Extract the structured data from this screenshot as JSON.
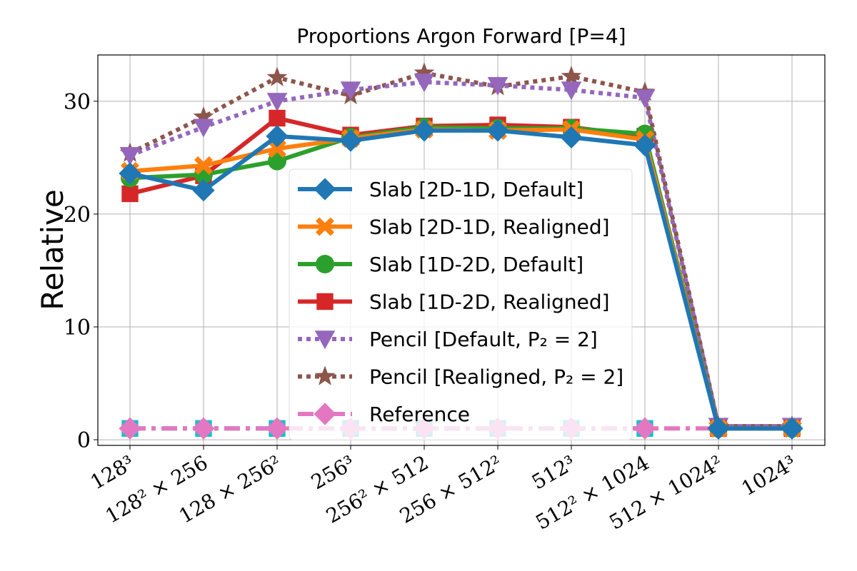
{
  "chart_data": {
    "type": "line",
    "title": "Proportions Argon Forward [P=4]",
    "y_label": "Relative",
    "categories": [
      "128³",
      "128² × 256",
      "128 × 256²",
      "256³",
      "256² × 512",
      "256 × 512²",
      "512³",
      "512² × 1024",
      "512 × 1024²",
      "1024³"
    ],
    "ylim": [
      -0.5,
      34.1
    ],
    "yticks": [
      0,
      10,
      20,
      30
    ],
    "grid": true,
    "legend": "center",
    "series": [
      {
        "name": "Slab [2D-1D, Default]",
        "color": "#1f77b4",
        "marker": "diamond",
        "linestyle": "solid",
        "values": [
          23.6,
          22.1,
          26.9,
          26.5,
          27.4,
          27.4,
          26.8,
          26.1,
          1.0,
          1.0
        ]
      },
      {
        "name": "Slab [2D-1D, Realigned]",
        "color": "#ff7f0e",
        "marker": "x",
        "linestyle": "solid",
        "values": [
          23.8,
          24.3,
          25.8,
          26.7,
          27.5,
          27.4,
          27.5,
          26.6,
          1.0,
          1.0
        ]
      },
      {
        "name": "Slab [1D-2D, Default]",
        "color": "#2ca02c",
        "marker": "circle",
        "linestyle": "solid",
        "values": [
          23.2,
          23.5,
          24.7,
          26.8,
          27.7,
          27.6,
          27.6,
          27.1,
          1.0,
          1.0
        ]
      },
      {
        "name": "Slab [1D-2D, Realigned]",
        "color": "#d62728",
        "marker": "square",
        "linestyle": "solid",
        "values": [
          21.8,
          23.4,
          28.5,
          27.0,
          27.8,
          27.9,
          27.7,
          26.9,
          1.0,
          1.0
        ]
      },
      {
        "name": "Pencil [Default, P₂ = 2]",
        "color": "#9467bd",
        "marker": "triangle",
        "linestyle": "dotted",
        "values": [
          25.2,
          27.7,
          30.0,
          31.0,
          31.7,
          31.4,
          31.0,
          30.3,
          1.2,
          1.2
        ]
      },
      {
        "name": "Pencil [Realigned, P₂ = 2]",
        "color": "#8c564b",
        "marker": "star",
        "linestyle": "dotted",
        "values": [
          25.4,
          28.6,
          32.1,
          30.5,
          32.5,
          31.3,
          32.2,
          30.8,
          1.2,
          1.2
        ]
      },
      {
        "name": "Reference",
        "color": "#e377c2",
        "marker": "diamond",
        "linestyle": "dashdot",
        "values": [
          1.0,
          1.0,
          1.0,
          1.0,
          1.0,
          1.0,
          1.0,
          1.0,
          1.0,
          1.0
        ]
      },
      {
        "color": "#17becf",
        "marker": "square",
        "linestyle": "dashdot",
        "values": [
          1.0,
          1.0,
          1.0,
          1.0,
          1.0,
          1.0,
          1.0,
          1.0,
          null,
          null
        ]
      }
    ]
  }
}
